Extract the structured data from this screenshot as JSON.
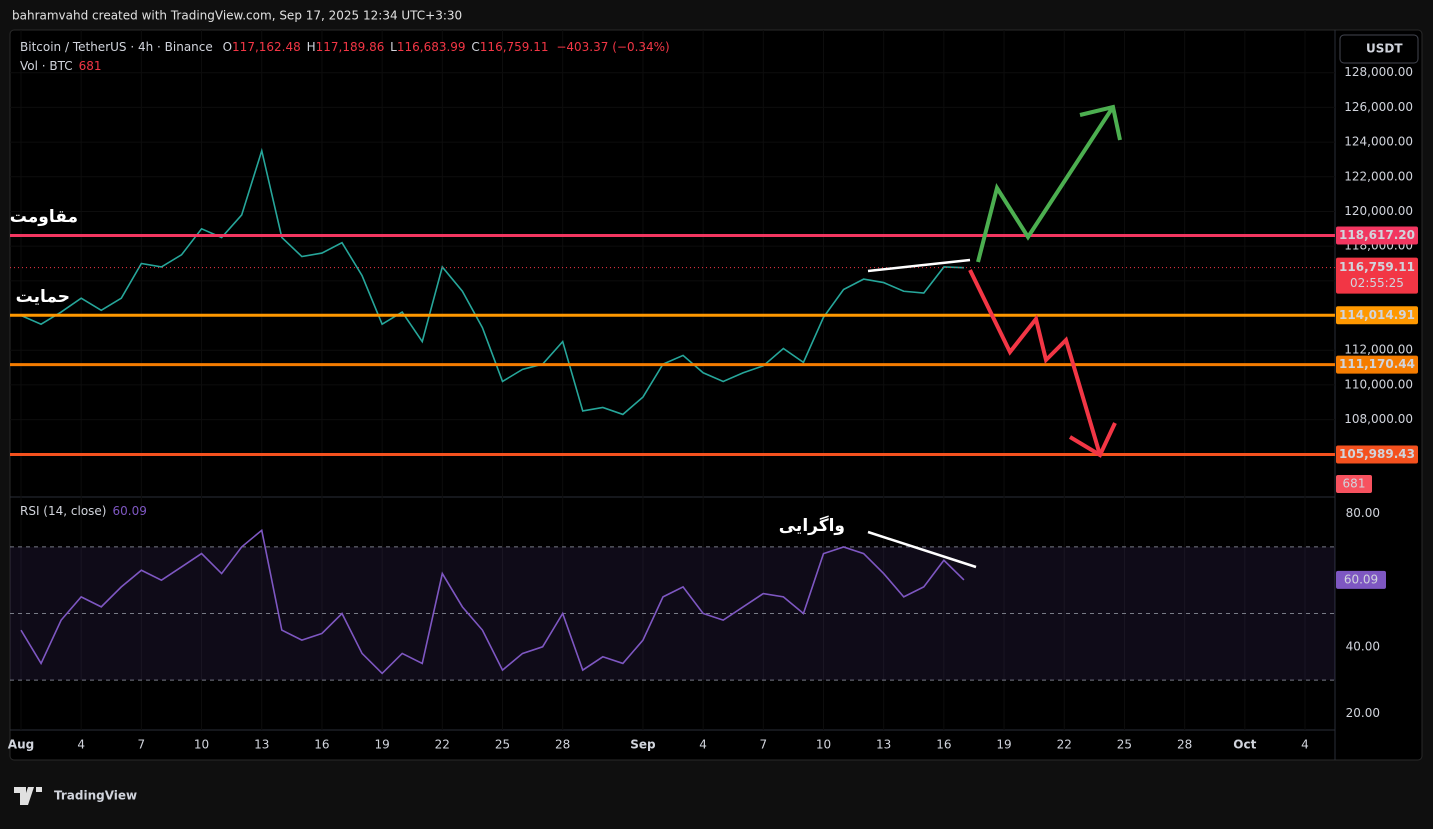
{
  "screen": {
    "header": "bahramvahd created with TradingView.com, Sep 17, 2025 12:34 UTC+3:30",
    "symbol": "Bitcoin / TetherUS · 4h · Binance",
    "open_label": "O",
    "open": "117,162.48",
    "high_label": "H",
    "high": "117,189.86",
    "low_label": "L",
    "low": "116,683.99",
    "close_label": "C",
    "close": "116,759.11",
    "change": "−403.37 (−0.34%)",
    "volume_label": "Vol · BTC",
    "volume": "681",
    "currency": "USDT",
    "rsi_label": "RSI (14, close)",
    "rsi_value": "60.09",
    "brand": "TradingView"
  },
  "chart_data": [
    {
      "type": "line",
      "x": [
        "Aug 1",
        "Aug 2",
        "Aug 3",
        "Aug 4",
        "Aug 5",
        "Aug 6",
        "Aug 7",
        "Aug 8",
        "Aug 9",
        "Aug 10",
        "Aug 11",
        "Aug 12",
        "Aug 13",
        "Aug 14",
        "Aug 15",
        "Aug 16",
        "Aug 17",
        "Aug 18",
        "Aug 19",
        "Aug 20",
        "Aug 21",
        "Aug 22",
        "Aug 23",
        "Aug 24",
        "Aug 25",
        "Aug 26",
        "Aug 27",
        "Aug 28",
        "Aug 29",
        "Aug 30",
        "Aug 31",
        "Sep 1",
        "Sep 2",
        "Sep 3",
        "Sep 4",
        "Sep 5",
        "Sep 6",
        "Sep 7",
        "Sep 8",
        "Sep 9",
        "Sep 10",
        "Sep 11",
        "Sep 12",
        "Sep 13",
        "Sep 14",
        "Sep 15",
        "Sep 16",
        "Sep 17"
      ],
      "series": [
        {
          "name": "Bitcoin / TetherUS",
          "color": "#26a69a",
          "values": [
            114000,
            113500,
            114200,
            115000,
            114300,
            115000,
            117000,
            116800,
            117500,
            119000,
            118500,
            119800,
            123500,
            118500,
            117400,
            117600,
            118200,
            116300,
            113500,
            114200,
            112500,
            116800,
            115400,
            113300,
            110200,
            110900,
            111200,
            112500,
            108500,
            108700,
            108300,
            109300,
            111200,
            111700,
            110700,
            110200,
            110700,
            111100,
            112100,
            111300,
            113900,
            115500,
            116100,
            115900,
            115400,
            115300,
            116800,
            116759.11
          ]
        }
      ],
      "last_price": {
        "value": 116759.11,
        "label": "116,759.11",
        "timer": "02:55:25",
        "color": "#f23645"
      },
      "levels": [
        {
          "value": 118617.2,
          "label": "118,617.20",
          "color": "#f23660",
          "text_color": "#ffffff"
        },
        {
          "value": 114014.91,
          "label": "114,014.91",
          "color": "#ff9800",
          "text_color": "#131722"
        },
        {
          "value": 111170.44,
          "label": "111,170.44",
          "color": "#f57c00",
          "text_color": "#131722"
        },
        {
          "value": 105989.43,
          "label": "105,989.43",
          "color": "#f4511e",
          "text_color": "#131722"
        }
      ],
      "xlim": [
        "Aug 1",
        "Oct 4"
      ],
      "xticks": [
        {
          "value": "Aug 1",
          "label": "Aug"
        },
        {
          "value": "Aug 4",
          "label": "4"
        },
        {
          "value": "Aug 7",
          "label": "7"
        },
        {
          "value": "Aug 10",
          "label": "10"
        },
        {
          "value": "Aug 13",
          "label": "13"
        },
        {
          "value": "Aug 16",
          "label": "16"
        },
        {
          "value": "Aug 19",
          "label": "19"
        },
        {
          "value": "Aug 22",
          "label": "22"
        },
        {
          "value": "Aug 25",
          "label": "25"
        },
        {
          "value": "Aug 28",
          "label": "28"
        },
        {
          "value": "Sep 1",
          "label": "Sep"
        },
        {
          "value": "Sep 4",
          "label": "4"
        },
        {
          "value": "Sep 7",
          "label": "7"
        },
        {
          "value": "Sep 10",
          "label": "10"
        },
        {
          "value": "Sep 13",
          "label": "13"
        },
        {
          "value": "Sep 16",
          "label": "16"
        },
        {
          "value": "Sep 19",
          "label": "19"
        },
        {
          "value": "Sep 22",
          "label": "22"
        },
        {
          "value": "Sep 25",
          "label": "25"
        },
        {
          "value": "Sep 28",
          "label": "28"
        },
        {
          "value": "Oct 1",
          "label": "Oct"
        },
        {
          "value": "Oct 4",
          "label": "4"
        }
      ],
      "ylim": [
        104000,
        130000
      ],
      "yticks": [
        {
          "value": 108000,
          "label": "108,000.00"
        },
        {
          "value": 110000,
          "label": "110,000.00"
        },
        {
          "value": 112000,
          "label": "112,000.00"
        },
        {
          "value": 114000,
          "label": "114,000.00"
        },
        {
          "value": 116000,
          "label": "116,000.00"
        },
        {
          "value": 118000,
          "label": "118,000.00"
        },
        {
          "value": 120000,
          "label": "120,000.00"
        },
        {
          "value": 122000,
          "label": "122,000.00"
        },
        {
          "value": 124000,
          "label": "124,000.00"
        },
        {
          "value": 126000,
          "label": "126,000.00"
        },
        {
          "value": 128000,
          "label": "128,000.00"
        }
      ],
      "annotations": {
        "resistance": "مقاومت",
        "support": "حمایت"
      }
    },
    {
      "type": "line",
      "series": [
        {
          "name": "RSI",
          "color": "#7e57c2",
          "values": [
            45,
            35,
            48,
            55,
            52,
            58,
            63,
            60,
            64,
            68,
            62,
            70,
            75,
            45,
            42,
            44,
            50,
            38,
            32,
            38,
            35,
            62,
            52,
            45,
            33,
            38,
            40,
            50,
            33,
            37,
            35,
            42,
            55,
            58,
            50,
            48,
            52,
            56,
            55,
            50,
            68,
            70,
            68,
            62,
            55,
            58,
            66,
            60.09
          ]
        }
      ],
      "last_value": {
        "value": 60.09,
        "label": "60.09"
      },
      "bands": [
        70,
        50,
        30
      ],
      "ylim": [
        15,
        85
      ],
      "yticks": [
        {
          "value": 20,
          "label": "20.00"
        },
        {
          "value": 40,
          "label": "40.00"
        },
        {
          "value": 60,
          "label": "60.00"
        },
        {
          "value": 80,
          "label": "80.00"
        }
      ],
      "annotations": {
        "divergence": "واگرایی"
      }
    }
  ]
}
